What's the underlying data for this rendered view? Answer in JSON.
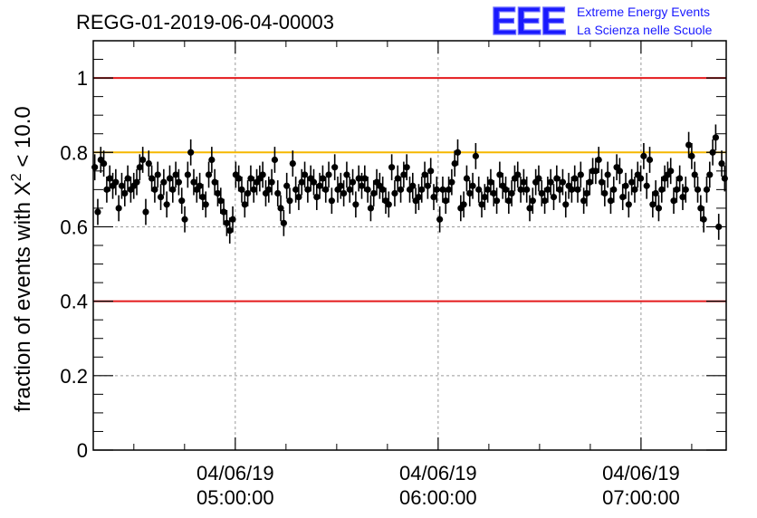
{
  "chart_data": {
    "type": "scatter",
    "title": "REGG-01-2019-06-04-00003",
    "ylabel_main": "fraction of events with X",
    "ylabel_sup": "2",
    "ylabel_tail": " < 10.0",
    "xlabel": "",
    "ylim": [
      0,
      1.1
    ],
    "y_ticks": [
      "0",
      "0.2",
      "0.4",
      "0.6",
      "0.8",
      "1"
    ],
    "y_tick_values": [
      0,
      0.2,
      0.4,
      0.6,
      0.8,
      1.0
    ],
    "x_range_hours": [
      4.3,
      7.42
    ],
    "x_ticks": [
      {
        "hour": 5,
        "date": "04/06/19",
        "time": "05:00:00"
      },
      {
        "hour": 6,
        "date": "04/06/19",
        "time": "06:00:00"
      },
      {
        "hour": 7,
        "date": "04/06/19",
        "time": "07:00:00"
      }
    ],
    "reference_lines": [
      {
        "y": 1.0,
        "color": "#e41a1c"
      },
      {
        "y": 0.8,
        "color": "#f5b800"
      },
      {
        "y": 0.4,
        "color": "#e41a1c"
      }
    ],
    "grid": true,
    "marker_color": "#000000",
    "series": [
      {
        "values": [
          0.76,
          0.64,
          0.78,
          0.77,
          0.7,
          0.73,
          0.71,
          0.72,
          0.65,
          0.71,
          0.69,
          0.73,
          0.7,
          0.71,
          0.72,
          0.76,
          0.78,
          0.64,
          0.77,
          0.73,
          0.7,
          0.74,
          0.68,
          0.72,
          0.66,
          0.73,
          0.7,
          0.74,
          0.72,
          0.67,
          0.62,
          0.74,
          0.8,
          0.72,
          0.7,
          0.71,
          0.68,
          0.66,
          0.74,
          0.78,
          0.72,
          0.69,
          0.67,
          0.64,
          0.61,
          0.59,
          0.62,
          0.74,
          0.73,
          0.7,
          0.66,
          0.69,
          0.73,
          0.7,
          0.72,
          0.73,
          0.74,
          0.69,
          0.7,
          0.72,
          0.78,
          0.69,
          0.65,
          0.61,
          0.71,
          0.67,
          0.77,
          0.7,
          0.68,
          0.72,
          0.74,
          0.7,
          0.73,
          0.72,
          0.68,
          0.71,
          0.73,
          0.7,
          0.74,
          0.67,
          0.76,
          0.7,
          0.71,
          0.69,
          0.74,
          0.7,
          0.72,
          0.66,
          0.73,
          0.71,
          0.73,
          0.7,
          0.65,
          0.69,
          0.72,
          0.71,
          0.7,
          0.67,
          0.66,
          0.76,
          0.69,
          0.73,
          0.7,
          0.74,
          0.76,
          0.7,
          0.71,
          0.67,
          0.68,
          0.7,
          0.74,
          0.71,
          0.75,
          0.68,
          0.7,
          0.62,
          0.7,
          0.67,
          0.7,
          0.72,
          0.77,
          0.8,
          0.65,
          0.66,
          0.73,
          0.69,
          0.71,
          0.79,
          0.7,
          0.66,
          0.68,
          0.7,
          0.72,
          0.69,
          0.67,
          0.74,
          0.71,
          0.7,
          0.67,
          0.69,
          0.73,
          0.74,
          0.7,
          0.72,
          0.7,
          0.65,
          0.67,
          0.72,
          0.73,
          0.69,
          0.67,
          0.7,
          0.72,
          0.68,
          0.73,
          0.7,
          0.72,
          0.66,
          0.71,
          0.7,
          0.73,
          0.7,
          0.74,
          0.67,
          0.69,
          0.72,
          0.75,
          0.75,
          0.78,
          0.72,
          0.69,
          0.74,
          0.67,
          0.7,
          0.76,
          0.75,
          0.68,
          0.71,
          0.66,
          0.72,
          0.7,
          0.74,
          0.73,
          0.79,
          0.71,
          0.78,
          0.66,
          0.69,
          0.65,
          0.7,
          0.73,
          0.74,
          0.75,
          0.67,
          0.7,
          0.73,
          0.68,
          0.7,
          0.82,
          0.79,
          0.74,
          0.7,
          0.65,
          0.62,
          0.7,
          0.74,
          0.8,
          0.84,
          0.6,
          0.77,
          0.73
        ],
        "errors": 0.035
      }
    ]
  },
  "logo": {
    "mark": "EEE",
    "line1": "Extreme Energy Events",
    "line2": "La Scienza nelle Scuole",
    "color": "#1a1aff"
  }
}
